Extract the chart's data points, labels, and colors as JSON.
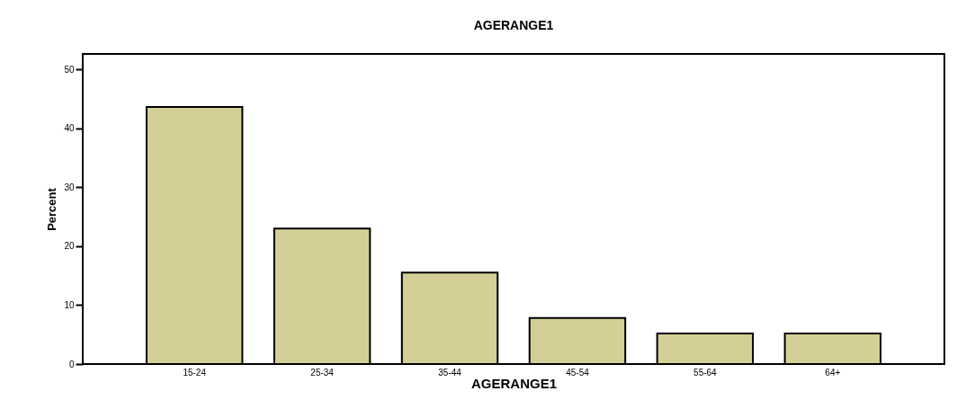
{
  "chart_data": {
    "type": "bar",
    "title": "AGERANGE1",
    "xlabel": "AGERANGE1",
    "ylabel": "Percent",
    "categories": [
      "15-24",
      "25-34",
      "35-44",
      "45-54",
      "55-64",
      "64+"
    ],
    "values": [
      43.6,
      23.0,
      15.5,
      7.8,
      5.2,
      5.2
    ],
    "color": "#d3cf97",
    "ylim": [
      0,
      52.6
    ],
    "yticks": [
      0,
      10,
      20,
      30,
      40,
      50
    ],
    "grid": false
  }
}
